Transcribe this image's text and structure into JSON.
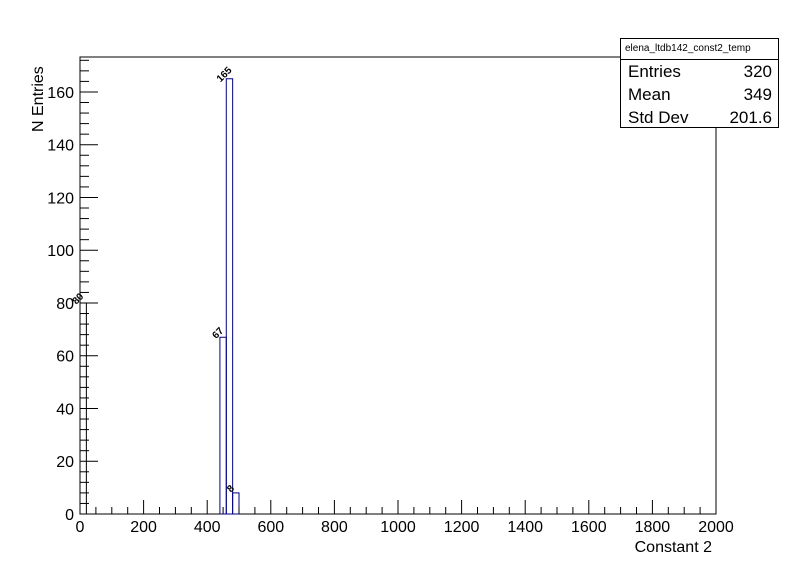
{
  "stats_box": {
    "title": "elena_ltdb142_const2_temp",
    "rows": [
      {
        "label": "Entries",
        "value": "320"
      },
      {
        "label": "Mean",
        "value": "349"
      },
      {
        "label": "Std Dev",
        "value": "201.6"
      }
    ]
  },
  "chart_data": {
    "type": "bar",
    "title": "",
    "xlabel": "Constant 2",
    "ylabel": "N Entries",
    "xlim": [
      0,
      2000
    ],
    "ylim": [
      0,
      173.25
    ],
    "xticks": [
      0,
      200,
      400,
      600,
      800,
      1000,
      1200,
      1400,
      1600,
      1800,
      2000
    ],
    "yticks": [
      0,
      20,
      40,
      60,
      80,
      100,
      120,
      140,
      160
    ],
    "bin_width": 20,
    "bins": [
      {
        "x": 0,
        "value": 80,
        "label": "80"
      },
      {
        "x": 440,
        "value": 67,
        "label": "67"
      },
      {
        "x": 460,
        "value": 165,
        "label": "165"
      },
      {
        "x": 480,
        "value": 8,
        "label": "8"
      }
    ],
    "line_color": "#000080",
    "grid": false
  }
}
